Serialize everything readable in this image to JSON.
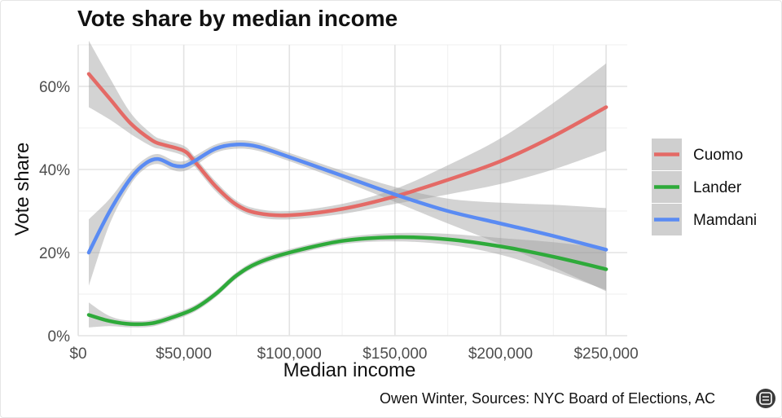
{
  "chart_data": {
    "type": "line",
    "title": "Vote share by median income",
    "xlabel": "Median income",
    "ylabel": "Vote share",
    "caption": "Owen Winter, Sources: NYC Board of Elections, AC",
    "xlim": [
      0,
      260000
    ],
    "ylim": [
      0,
      0.7
    ],
    "x_ticks": [
      0,
      50000,
      100000,
      150000,
      200000,
      250000
    ],
    "x_tick_labels": [
      "$0",
      "$50,000",
      "$100,000",
      "$150,000",
      "$200,000",
      "$250,000"
    ],
    "y_ticks": [
      0,
      0.2,
      0.4,
      0.6
    ],
    "y_tick_labels": [
      "0%",
      "20%",
      "40%",
      "60%"
    ],
    "grid": true,
    "legend_position": "right",
    "series": [
      {
        "name": "Cuomo",
        "color": "#E46A66",
        "x": [
          5000,
          15000,
          25000,
          35000,
          40000,
          50000,
          55000,
          65000,
          75000,
          85000,
          100000,
          125000,
          150000,
          175000,
          200000,
          225000,
          250000
        ],
        "y": [
          0.63,
          0.57,
          0.51,
          0.47,
          0.46,
          0.445,
          0.42,
          0.36,
          0.315,
          0.295,
          0.29,
          0.305,
          0.335,
          0.375,
          0.42,
          0.48,
          0.55
        ],
        "ci_half": [
          0.08,
          0.05,
          0.025,
          0.015,
          0.012,
          0.012,
          0.012,
          0.012,
          0.01,
          0.01,
          0.01,
          0.012,
          0.018,
          0.035,
          0.055,
          0.08,
          0.105
        ]
      },
      {
        "name": "Lander",
        "color": "#2EAA3A",
        "x": [
          5000,
          15000,
          25000,
          35000,
          45000,
          55000,
          65000,
          75000,
          85000,
          100000,
          125000,
          150000,
          175000,
          200000,
          225000,
          250000
        ],
        "y": [
          0.05,
          0.035,
          0.028,
          0.03,
          0.045,
          0.065,
          0.1,
          0.145,
          0.175,
          0.2,
          0.228,
          0.237,
          0.232,
          0.215,
          0.19,
          0.16
        ],
        "ci_half": [
          0.03,
          0.012,
          0.008,
          0.008,
          0.008,
          0.008,
          0.008,
          0.008,
          0.008,
          0.008,
          0.008,
          0.01,
          0.013,
          0.02,
          0.035,
          0.05
        ]
      },
      {
        "name": "Mamdani",
        "color": "#5A8BF3",
        "x": [
          5000,
          15000,
          25000,
          32000,
          38000,
          45000,
          50000,
          55000,
          65000,
          75000,
          85000,
          100000,
          125000,
          150000,
          175000,
          200000,
          225000,
          250000
        ],
        "y": [
          0.2,
          0.3,
          0.38,
          0.415,
          0.425,
          0.41,
          0.408,
          0.42,
          0.45,
          0.46,
          0.455,
          0.43,
          0.385,
          0.34,
          0.3,
          0.27,
          0.24,
          0.207
        ],
        "ci_half": [
          0.08,
          0.03,
          0.015,
          0.012,
          0.012,
          0.012,
          0.012,
          0.012,
          0.01,
          0.01,
          0.01,
          0.01,
          0.012,
          0.018,
          0.03,
          0.05,
          0.075,
          0.1
        ]
      }
    ]
  }
}
